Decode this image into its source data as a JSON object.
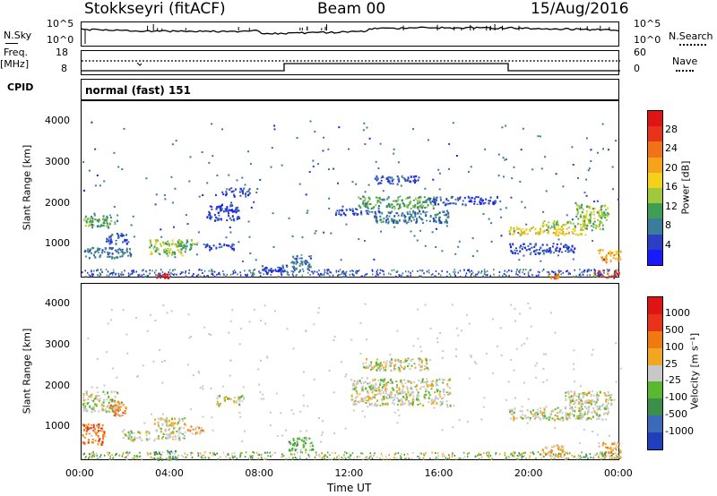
{
  "header": {
    "station": "Stokkseyri (fitACF)",
    "beam": "Beam 00",
    "date": "15/Aug/2016"
  },
  "left_labels": {
    "nsky": "N.Sky",
    "freq": "Freq.",
    "mhz": "[MHz]",
    "cpid": "CPID"
  },
  "right_labels": {
    "nsearch": "N.Search",
    "nave": "Nave"
  },
  "noise_panel": {
    "left_ticks": [
      "10^5",
      "10^0"
    ],
    "right_ticks": [
      "10^5",
      "10^0"
    ]
  },
  "freq_panel": {
    "left_ticks": [
      "18",
      "8"
    ],
    "right_ticks": [
      "60",
      "0"
    ]
  },
  "cpid_text": "normal (fast) 151",
  "x_axis": {
    "label": "Time UT",
    "ticks": [
      "00:00",
      "04:00",
      "08:00",
      "12:00",
      "16:00",
      "20:00",
      "00:00"
    ]
  },
  "range_ticks": [
    "1000",
    "2000",
    "3000",
    "4000"
  ],
  "chart_data": [
    {
      "type": "heatmap",
      "panel": "power",
      "ylabel": "Slant Range [km]",
      "xlabel": "",
      "xlim": [
        0,
        24
      ],
      "ylim": [
        180,
        4500
      ],
      "colorbar_label": "Power [dB]",
      "colorbar_ticks": [
        "4",
        "8",
        "12",
        "16",
        "20",
        "24",
        "28"
      ],
      "colorbar_colors": [
        "#1a1aff",
        "#2b3fc4",
        "#3a7c99",
        "#3e9e55",
        "#9fc93a",
        "#f5d21a",
        "#f6a21a",
        "#f27218",
        "#e8321a",
        "#e01414"
      ],
      "patches": [
        {
          "t0": 0.0,
          "t1": 1.6,
          "r0": 1450,
          "r1": 1750,
          "level": 3
        },
        {
          "t0": 0.1,
          "t1": 2.2,
          "r0": 700,
          "r1": 950,
          "level": 2
        },
        {
          "t0": 1.0,
          "t1": 2.0,
          "r0": 1050,
          "r1": 1300,
          "level": 1
        },
        {
          "t0": 3.0,
          "t1": 4.5,
          "r0": 750,
          "r1": 1150,
          "level": 4
        },
        {
          "t0": 4.2,
          "t1": 5.2,
          "r0": 900,
          "r1": 1150,
          "level": 3
        },
        {
          "t0": 5.3,
          "t1": 6.8,
          "r0": 900,
          "r1": 1050,
          "level": 1
        },
        {
          "t0": 3.3,
          "t1": 3.9,
          "r0": 200,
          "r1": 320,
          "level": 9
        },
        {
          "t0": 5.5,
          "t1": 7.0,
          "r0": 1600,
          "r1": 2000,
          "level": 1
        },
        {
          "t0": 6.2,
          "t1": 7.5,
          "r0": 2200,
          "r1": 2400,
          "level": 1
        },
        {
          "t0": 8.0,
          "t1": 9.5,
          "r0": 350,
          "r1": 520,
          "level": 1
        },
        {
          "t0": 9.3,
          "t1": 10.2,
          "r0": 400,
          "r1": 780,
          "level": 2
        },
        {
          "t0": 12.3,
          "t1": 15.8,
          "r0": 1900,
          "r1": 2200,
          "level": 3
        },
        {
          "t0": 13.0,
          "t1": 16.4,
          "r0": 1550,
          "r1": 1850,
          "level": 2
        },
        {
          "t0": 11.2,
          "t1": 13.0,
          "r0": 1750,
          "r1": 1900,
          "level": 1
        },
        {
          "t0": 15.5,
          "t1": 18.5,
          "r0": 2000,
          "r1": 2200,
          "level": 1
        },
        {
          "t0": 13.0,
          "t1": 15.0,
          "r0": 2500,
          "r1": 2700,
          "level": 1
        },
        {
          "t0": 19.0,
          "t1": 22.5,
          "r0": 1250,
          "r1": 1450,
          "level": 5
        },
        {
          "t0": 20.5,
          "t1": 23.2,
          "r0": 1400,
          "r1": 1600,
          "level": 4
        },
        {
          "t0": 22.0,
          "t1": 23.5,
          "r0": 1600,
          "r1": 2000,
          "level": 4
        },
        {
          "t0": 19.0,
          "t1": 22.0,
          "r0": 800,
          "r1": 1050,
          "level": 1
        },
        {
          "t0": 22.8,
          "t1": 24.0,
          "r0": 200,
          "r1": 420,
          "level": 8
        },
        {
          "t0": 20.8,
          "t1": 21.3,
          "r0": 200,
          "r1": 320,
          "level": 7
        },
        {
          "t0": 23.0,
          "t1": 24.0,
          "r0": 600,
          "r1": 900,
          "level": 6
        }
      ]
    },
    {
      "type": "heatmap",
      "panel": "velocity",
      "ylabel": "Slant Range [km]",
      "xlabel": "Time UT",
      "xlim": [
        0,
        24
      ],
      "ylim": [
        180,
        4500
      ],
      "colorbar_label": "Velocity [m s⁻¹]",
      "colorbar_ticks": [
        "1000",
        "500",
        "100",
        "25",
        "-25",
        "-100",
        "-500",
        "-1000"
      ],
      "colorbar_colors": [
        "#1f3fbf",
        "#3a6bb8",
        "#3c8f4a",
        "#5ab82e",
        "#c8c8c8",
        "#f0a820",
        "#f07a10",
        "#e8321a",
        "#e01414"
      ],
      "patches": [
        {
          "t0": 0.0,
          "t1": 1.0,
          "r0": 600,
          "r1": 1100,
          "level": 6
        },
        {
          "t0": 1.2,
          "t1": 2.0,
          "r0": 1300,
          "r1": 1700,
          "level": 6
        },
        {
          "t0": 0.0,
          "t1": 1.6,
          "r0": 1400,
          "r1": 1900,
          "level": 4
        },
        {
          "t0": 1.8,
          "t1": 3.0,
          "r0": 700,
          "r1": 950,
          "level": 4
        },
        {
          "t0": 3.2,
          "t1": 4.6,
          "r0": 700,
          "r1": 1250,
          "level": 4
        },
        {
          "t0": 3.2,
          "t1": 4.2,
          "r0": 200,
          "r1": 450,
          "level": 2
        },
        {
          "t0": 4.6,
          "t1": 5.4,
          "r0": 850,
          "r1": 1050,
          "level": 5
        },
        {
          "t0": 9.2,
          "t1": 10.3,
          "r0": 450,
          "r1": 780,
          "level": 3
        },
        {
          "t0": 12.0,
          "t1": 16.4,
          "r0": 1550,
          "r1": 2200,
          "level": 4
        },
        {
          "t0": 12.5,
          "t1": 15.5,
          "r0": 2400,
          "r1": 2700,
          "level": 4
        },
        {
          "t0": 19.0,
          "t1": 23.5,
          "r0": 1200,
          "r1": 1500,
          "level": 4
        },
        {
          "t0": 21.5,
          "t1": 23.6,
          "r0": 1500,
          "r1": 1900,
          "level": 4
        },
        {
          "t0": 20.5,
          "t1": 21.5,
          "r0": 300,
          "r1": 600,
          "level": 5
        },
        {
          "t0": 23.0,
          "t1": 24.0,
          "r0": 250,
          "r1": 650,
          "level": 5
        },
        {
          "t0": 6.0,
          "t1": 7.2,
          "r0": 1550,
          "r1": 1800,
          "level": 4
        }
      ]
    }
  ]
}
